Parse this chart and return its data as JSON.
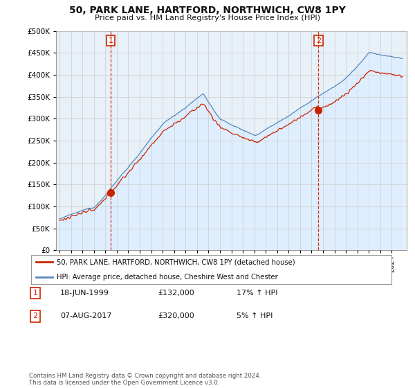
{
  "title": "50, PARK LANE, HARTFORD, NORTHWICH, CW8 1PY",
  "subtitle": "Price paid vs. HM Land Registry's House Price Index (HPI)",
  "legend_line1": "50, PARK LANE, HARTFORD, NORTHWICH, CW8 1PY (detached house)",
  "legend_line2": "HPI: Average price, detached house, Cheshire West and Chester",
  "t1_date": "18-JUN-1999",
  "t1_price": "£132,000",
  "t1_hpi": "17% ↑ HPI",
  "t1_year": 1999.46,
  "t1_price_val": 132000,
  "t2_date": "07-AUG-2017",
  "t2_price": "£320,000",
  "t2_hpi": "5% ↑ HPI",
  "t2_year": 2017.6,
  "t2_price_val": 320000,
  "footer": "Contains HM Land Registry data © Crown copyright and database right 2024.\nThis data is licensed under the Open Government Licence v3.0.",
  "ylim": [
    0,
    500000
  ],
  "yticks": [
    0,
    50000,
    100000,
    150000,
    200000,
    250000,
    300000,
    350000,
    400000,
    450000,
    500000
  ],
  "hpi_color": "#5588bb",
  "hpi_fill_color": "#ddeeff",
  "price_color": "#cc2200",
  "vline_color": "#cc2200",
  "background_color": "#ffffff",
  "grid_color": "#cccccc",
  "xlim_left": 1994.7,
  "xlim_right": 2025.3
}
